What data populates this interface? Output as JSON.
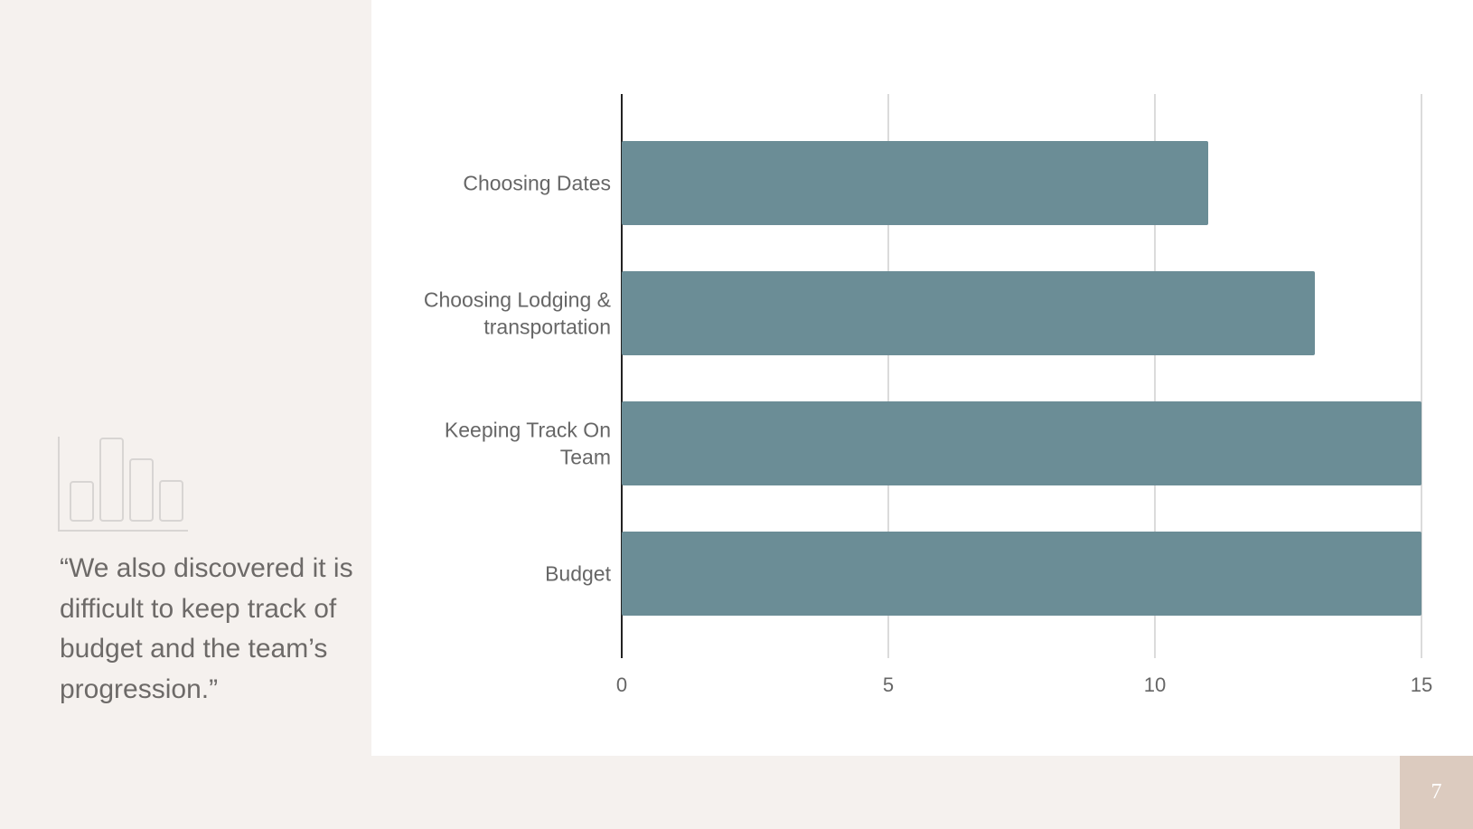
{
  "quote": {
    "text": "“We also discovered it is difficult to keep track of budget and the team’s progression.”"
  },
  "page": {
    "number": "7"
  },
  "colors": {
    "bar": "#6b8d96",
    "grid": "#cfcfcf",
    "axis": "#222222",
    "label": "#666666",
    "left_panel": "#f5f1ee",
    "page_box": "#dccbbf"
  },
  "icons": {
    "left_panel": "bar-chart-outline-icon"
  },
  "chart_data": {
    "type": "bar",
    "orientation": "horizontal",
    "categories": [
      "Choosing Dates",
      "Choosing Lodging & transportation",
      "Keeping Track On Team",
      "Budget"
    ],
    "values": [
      11,
      13,
      15,
      15
    ],
    "xlim": [
      0,
      15
    ],
    "xticks": [
      "0",
      "5",
      "10",
      "15"
    ],
    "title": "",
    "xlabel": "",
    "ylabel": "",
    "grid": true,
    "legend": "none"
  }
}
